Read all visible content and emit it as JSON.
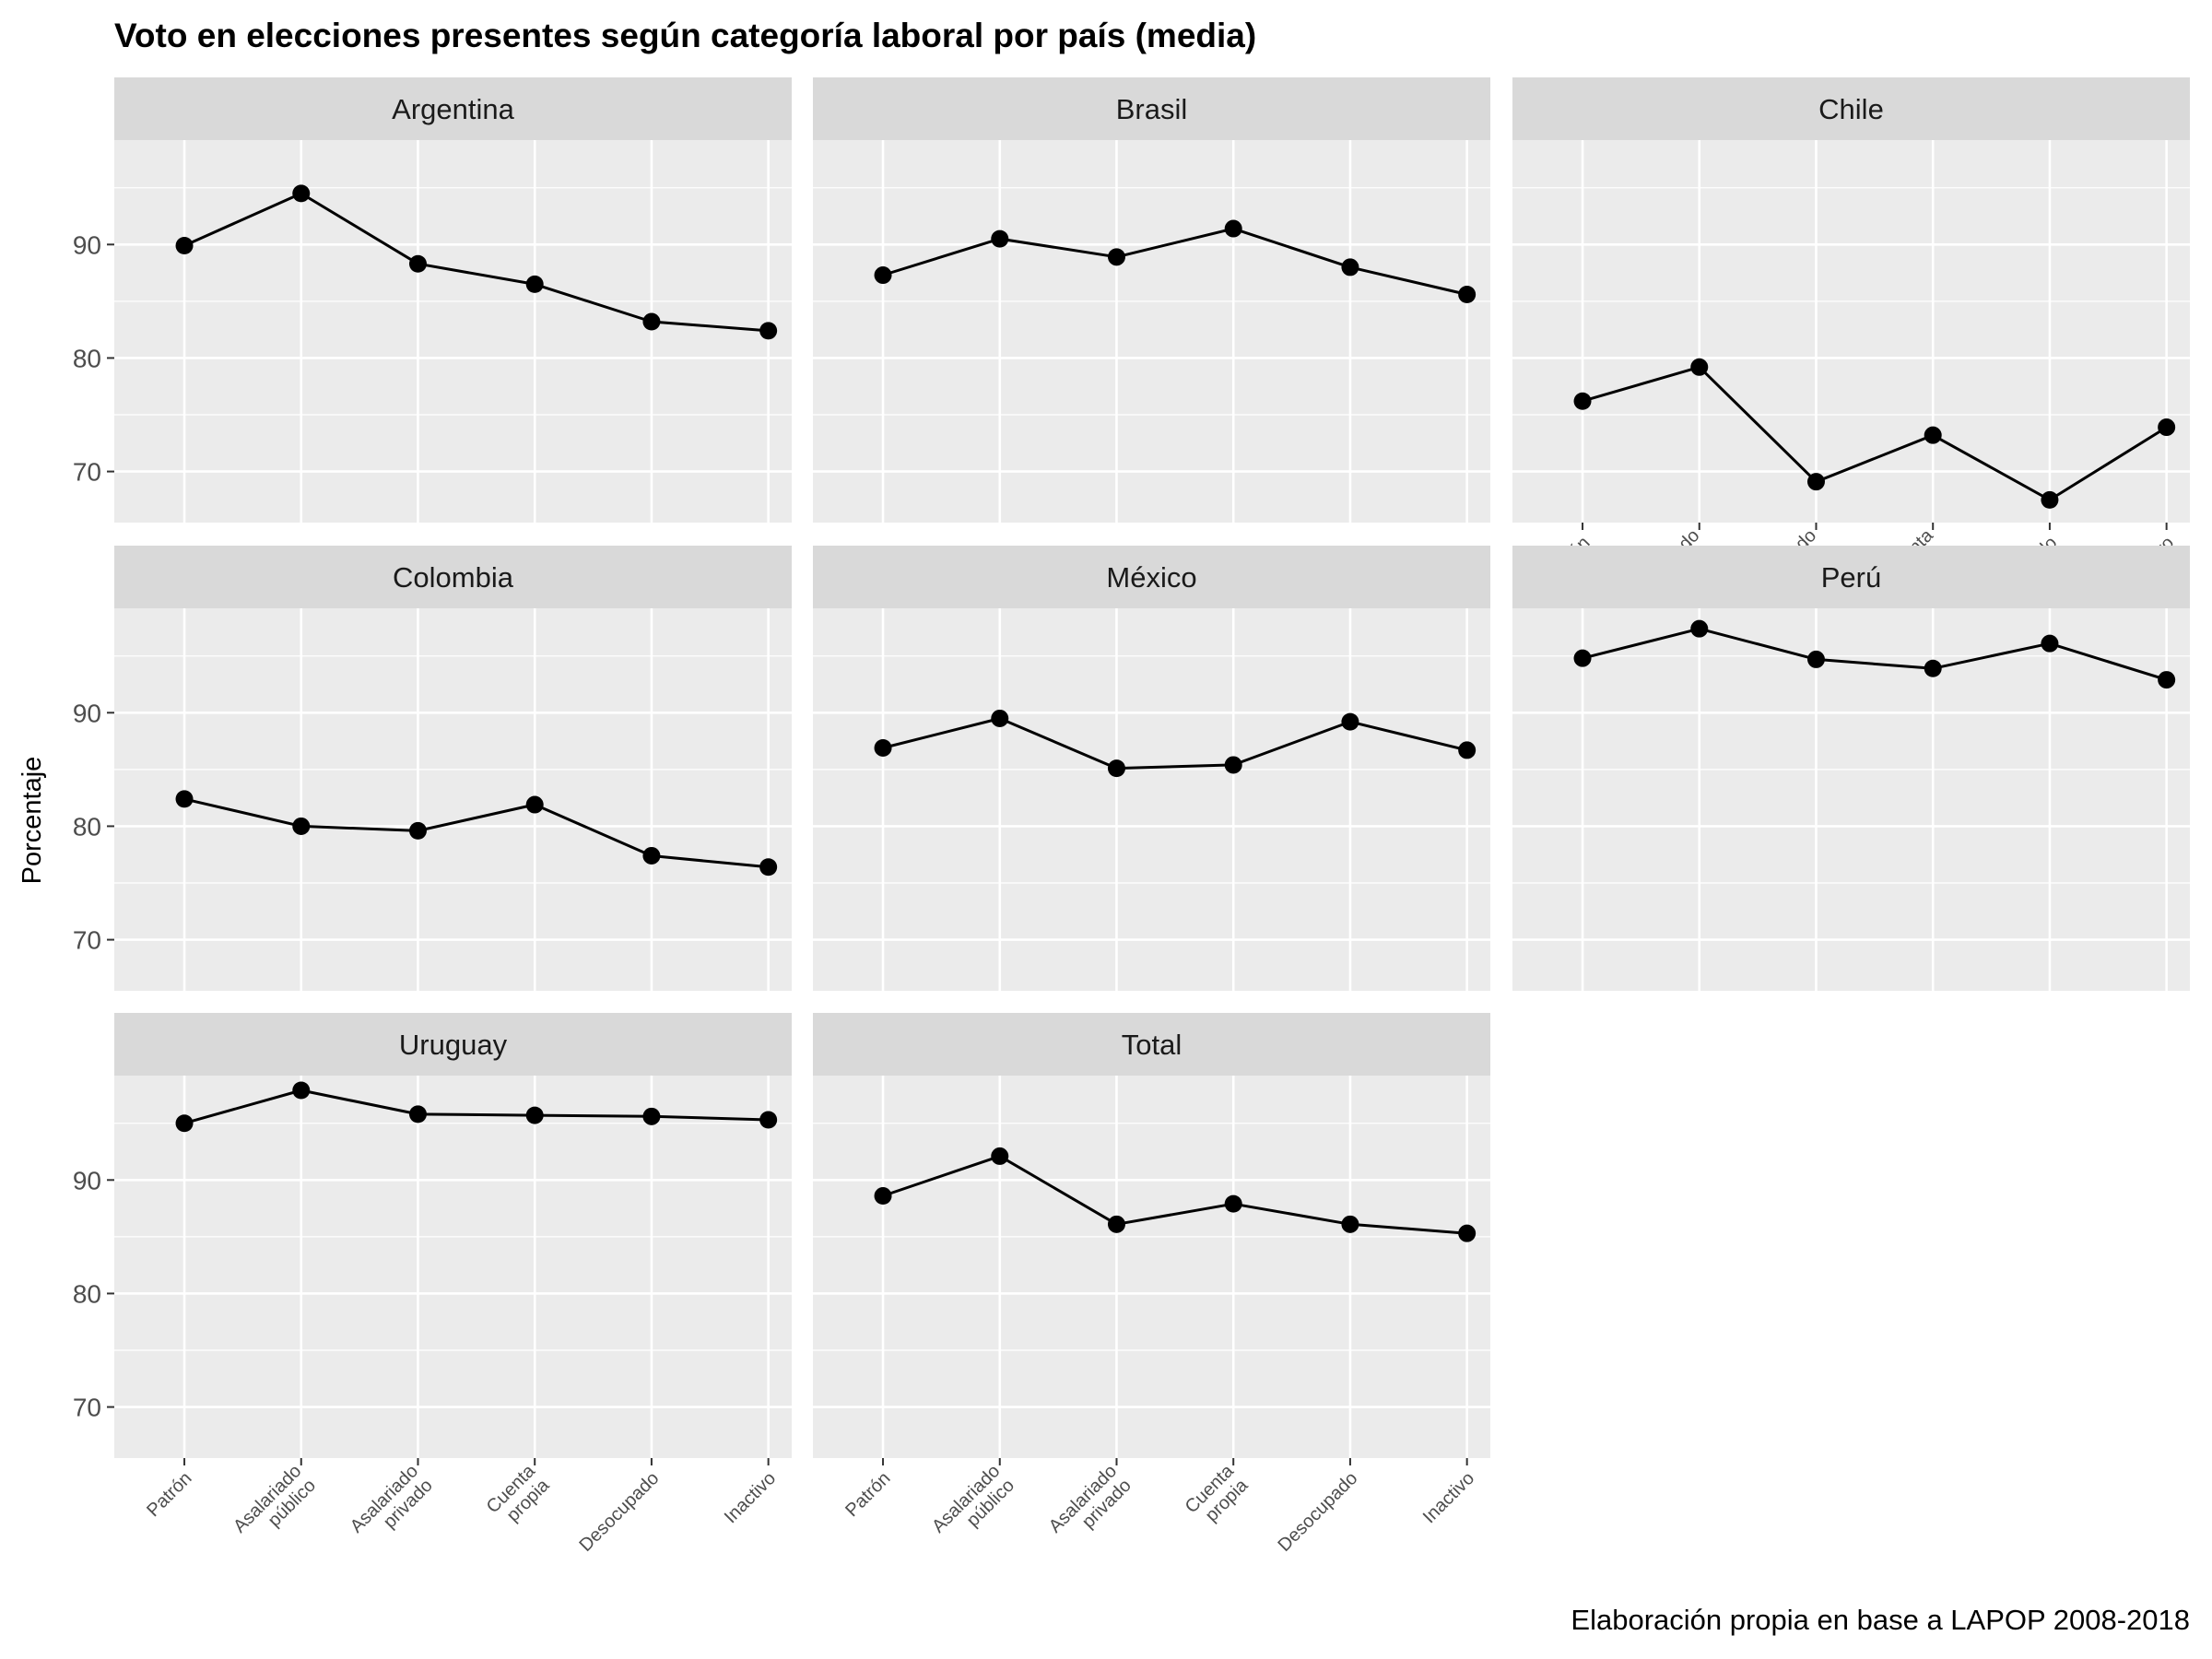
{
  "chart_data": {
    "type": "line",
    "title": "Voto en elecciones presentes según categoría laboral por país (media)",
    "ylabel": "Porcentaje",
    "xlabel": "",
    "caption": "Elaboración propia en base a LAPOP 2008-2018",
    "categories": [
      "Patrón",
      "Asalariado público",
      "Asalariado privado",
      "Cuenta propia",
      "Desocupado",
      "Inactivo"
    ],
    "category_lines": [
      [
        "Patrón"
      ],
      [
        "Asalariado",
        "público"
      ],
      [
        "Asalariado",
        "privado"
      ],
      [
        "Cuenta",
        "propia"
      ],
      [
        "Desocupado"
      ],
      [
        "Inactivo"
      ]
    ],
    "ylim": [
      65.5,
      99.2
    ],
    "yticks": [
      70,
      80,
      90
    ],
    "grid": true,
    "legend": "none",
    "line_color": "#000000",
    "panel_background": "#ebebeb",
    "strip_background": "#d9d9d9",
    "grid_color": "#ffffff",
    "panels": [
      {
        "name": "Argentina",
        "values": [
          89.9,
          94.5,
          88.3,
          86.5,
          83.2,
          82.4
        ]
      },
      {
        "name": "Brasil",
        "values": [
          87.3,
          90.5,
          88.9,
          91.4,
          88.0,
          85.6
        ]
      },
      {
        "name": "Chile",
        "values": [
          76.2,
          79.2,
          69.1,
          73.2,
          67.5,
          73.9
        ]
      },
      {
        "name": "Colombia",
        "values": [
          82.4,
          80.0,
          79.6,
          81.9,
          77.4,
          76.4
        ]
      },
      {
        "name": "México",
        "values": [
          86.9,
          89.5,
          85.1,
          85.4,
          89.2,
          86.7
        ]
      },
      {
        "name": "Perú",
        "values": [
          94.8,
          97.4,
          94.7,
          93.9,
          96.1,
          92.9
        ]
      },
      {
        "name": "Uruguay",
        "values": [
          95.0,
          97.9,
          95.8,
          95.7,
          95.6,
          95.3
        ]
      },
      {
        "name": "Total",
        "values": [
          88.6,
          92.1,
          86.1,
          87.9,
          86.1,
          85.3
        ]
      }
    ]
  }
}
